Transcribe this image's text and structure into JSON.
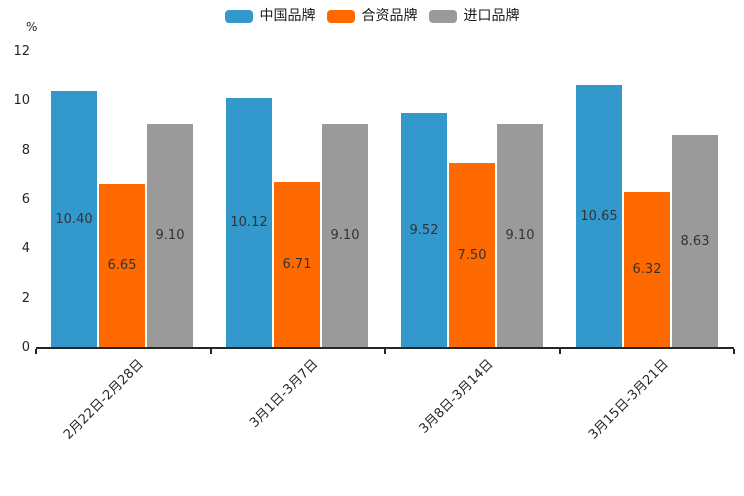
{
  "chart_data": {
    "type": "bar",
    "title": "",
    "xlabel": "",
    "ylabel": "%",
    "ylim": [
      0,
      12
    ],
    "yticks": [
      0,
      2,
      4,
      6,
      8,
      10,
      12
    ],
    "grid": false,
    "legend_position": "top-center",
    "x_tick_label_rotation_deg": 45,
    "bar_label_decimals": 2,
    "categories": [
      "2月22日-2月28日",
      "3月1日-3月7日",
      "3月8日-3月14日",
      "3月15日-3月21日"
    ],
    "series": [
      {
        "name": "中国品牌",
        "color": "#3398cc",
        "values": [
          10.4,
          10.12,
          9.52,
          10.65
        ]
      },
      {
        "name": "合资品牌",
        "color": "#ff6a00",
        "values": [
          6.65,
          6.71,
          7.5,
          6.32
        ]
      },
      {
        "name": "进口品牌",
        "color": "#9a9a9a",
        "values": [
          9.1,
          9.1,
          9.1,
          8.63
        ]
      }
    ],
    "colors": {
      "axis": "#262626",
      "bar_label_text": "#333333",
      "background": "#ffffff"
    }
  }
}
